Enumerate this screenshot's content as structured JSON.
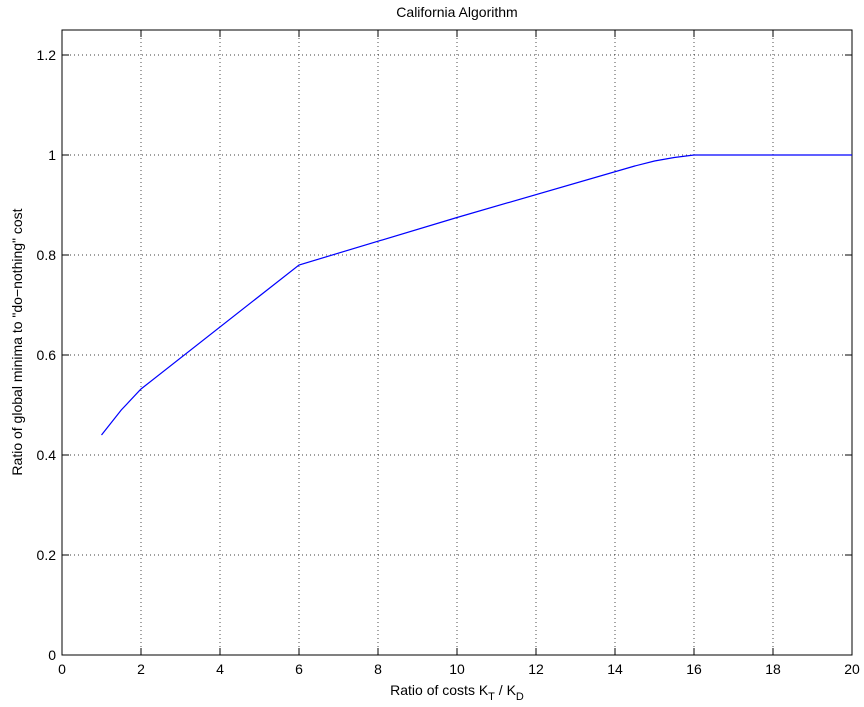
{
  "chart_data": {
    "type": "line",
    "title": "California Algorithm",
    "xlabel": [
      "Ratio of costs K",
      "T",
      " / K",
      "D"
    ],
    "ylabel": "Ratio of global minima to \"do−nothing\" cost",
    "x": [
      1,
      1.5,
      2,
      6,
      10,
      14.5,
      15,
      15.5,
      16,
      20
    ],
    "series": [
      {
        "color": "#0000ff",
        "values": [
          0.44,
          0.49,
          0.532,
          0.78,
          0.875,
          0.978,
          0.988,
          0.995,
          1,
          1
        ]
      }
    ],
    "xlim": [
      0,
      20
    ],
    "ylim": [
      0,
      1.25
    ],
    "xticks": [
      0,
      2,
      4,
      6,
      8,
      10,
      12,
      14,
      16,
      18,
      20
    ],
    "yticks": [
      0,
      0.2,
      0.4,
      0.6,
      0.8,
      1,
      1.2
    ],
    "grid": true
  }
}
